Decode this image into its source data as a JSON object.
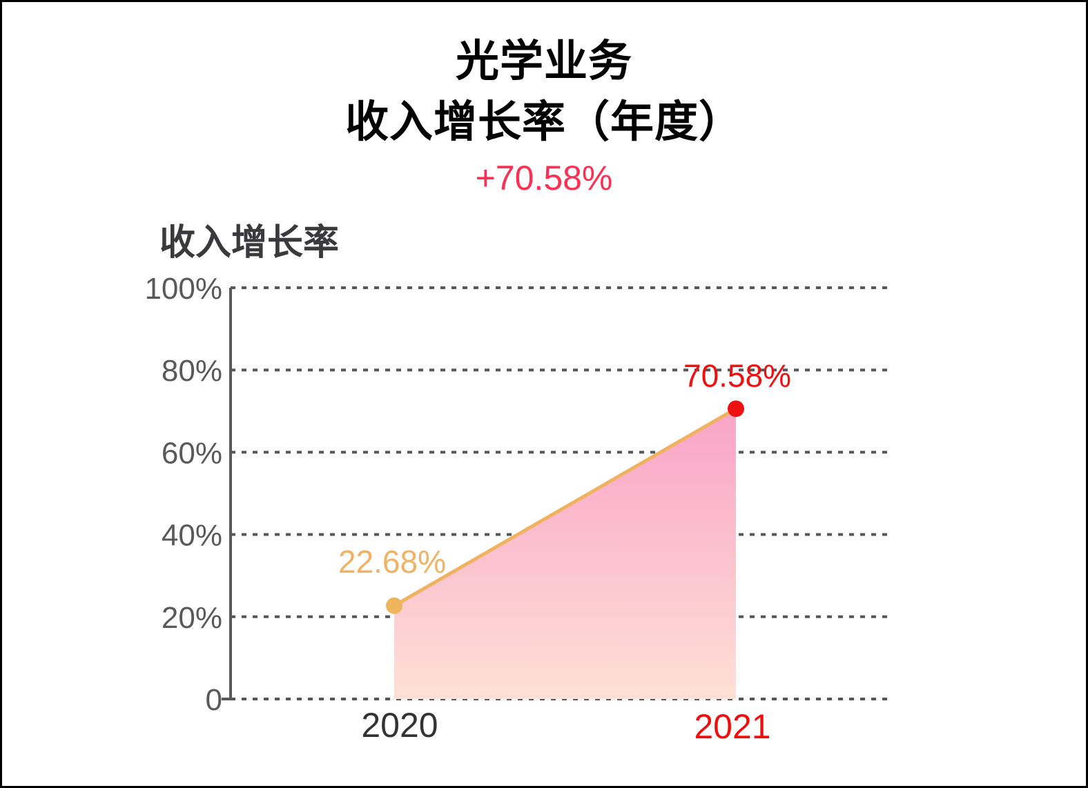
{
  "header": {
    "title_line1": "光学业务",
    "title_line2": "收入增长率（年度）",
    "delta": "+70.58%",
    "delta_color": "#fb3053"
  },
  "panel": {
    "label": "收入增长率"
  },
  "chart_data": {
    "type": "area",
    "title": "收入增长率",
    "categories": [
      "2020",
      "2021"
    ],
    "values": [
      22.68,
      70.58
    ],
    "point_labels": [
      "22.68%",
      "70.58%"
    ],
    "yticks": [
      "100%",
      "80%",
      "60%",
      "40%",
      "20%",
      "0"
    ],
    "ytick_values": [
      100,
      80,
      60,
      40,
      20,
      0
    ],
    "ylim": [
      0,
      100
    ],
    "grid": "dotted-horizontal",
    "legend": "none",
    "colors": {
      "line": "#f0b25f",
      "point_2020": "#efb45e",
      "point_2021": "#ed1111",
      "point_label_2020": "#f0b264",
      "point_label_2021": "#ee1111",
      "xlabel_2020": "#333333",
      "xlabel_2021": "#f20d0d",
      "area_top": "#f9a3c7",
      "area_bottom": "#fee0d6",
      "axis": "#58595b",
      "gridline": "#56575a"
    }
  }
}
